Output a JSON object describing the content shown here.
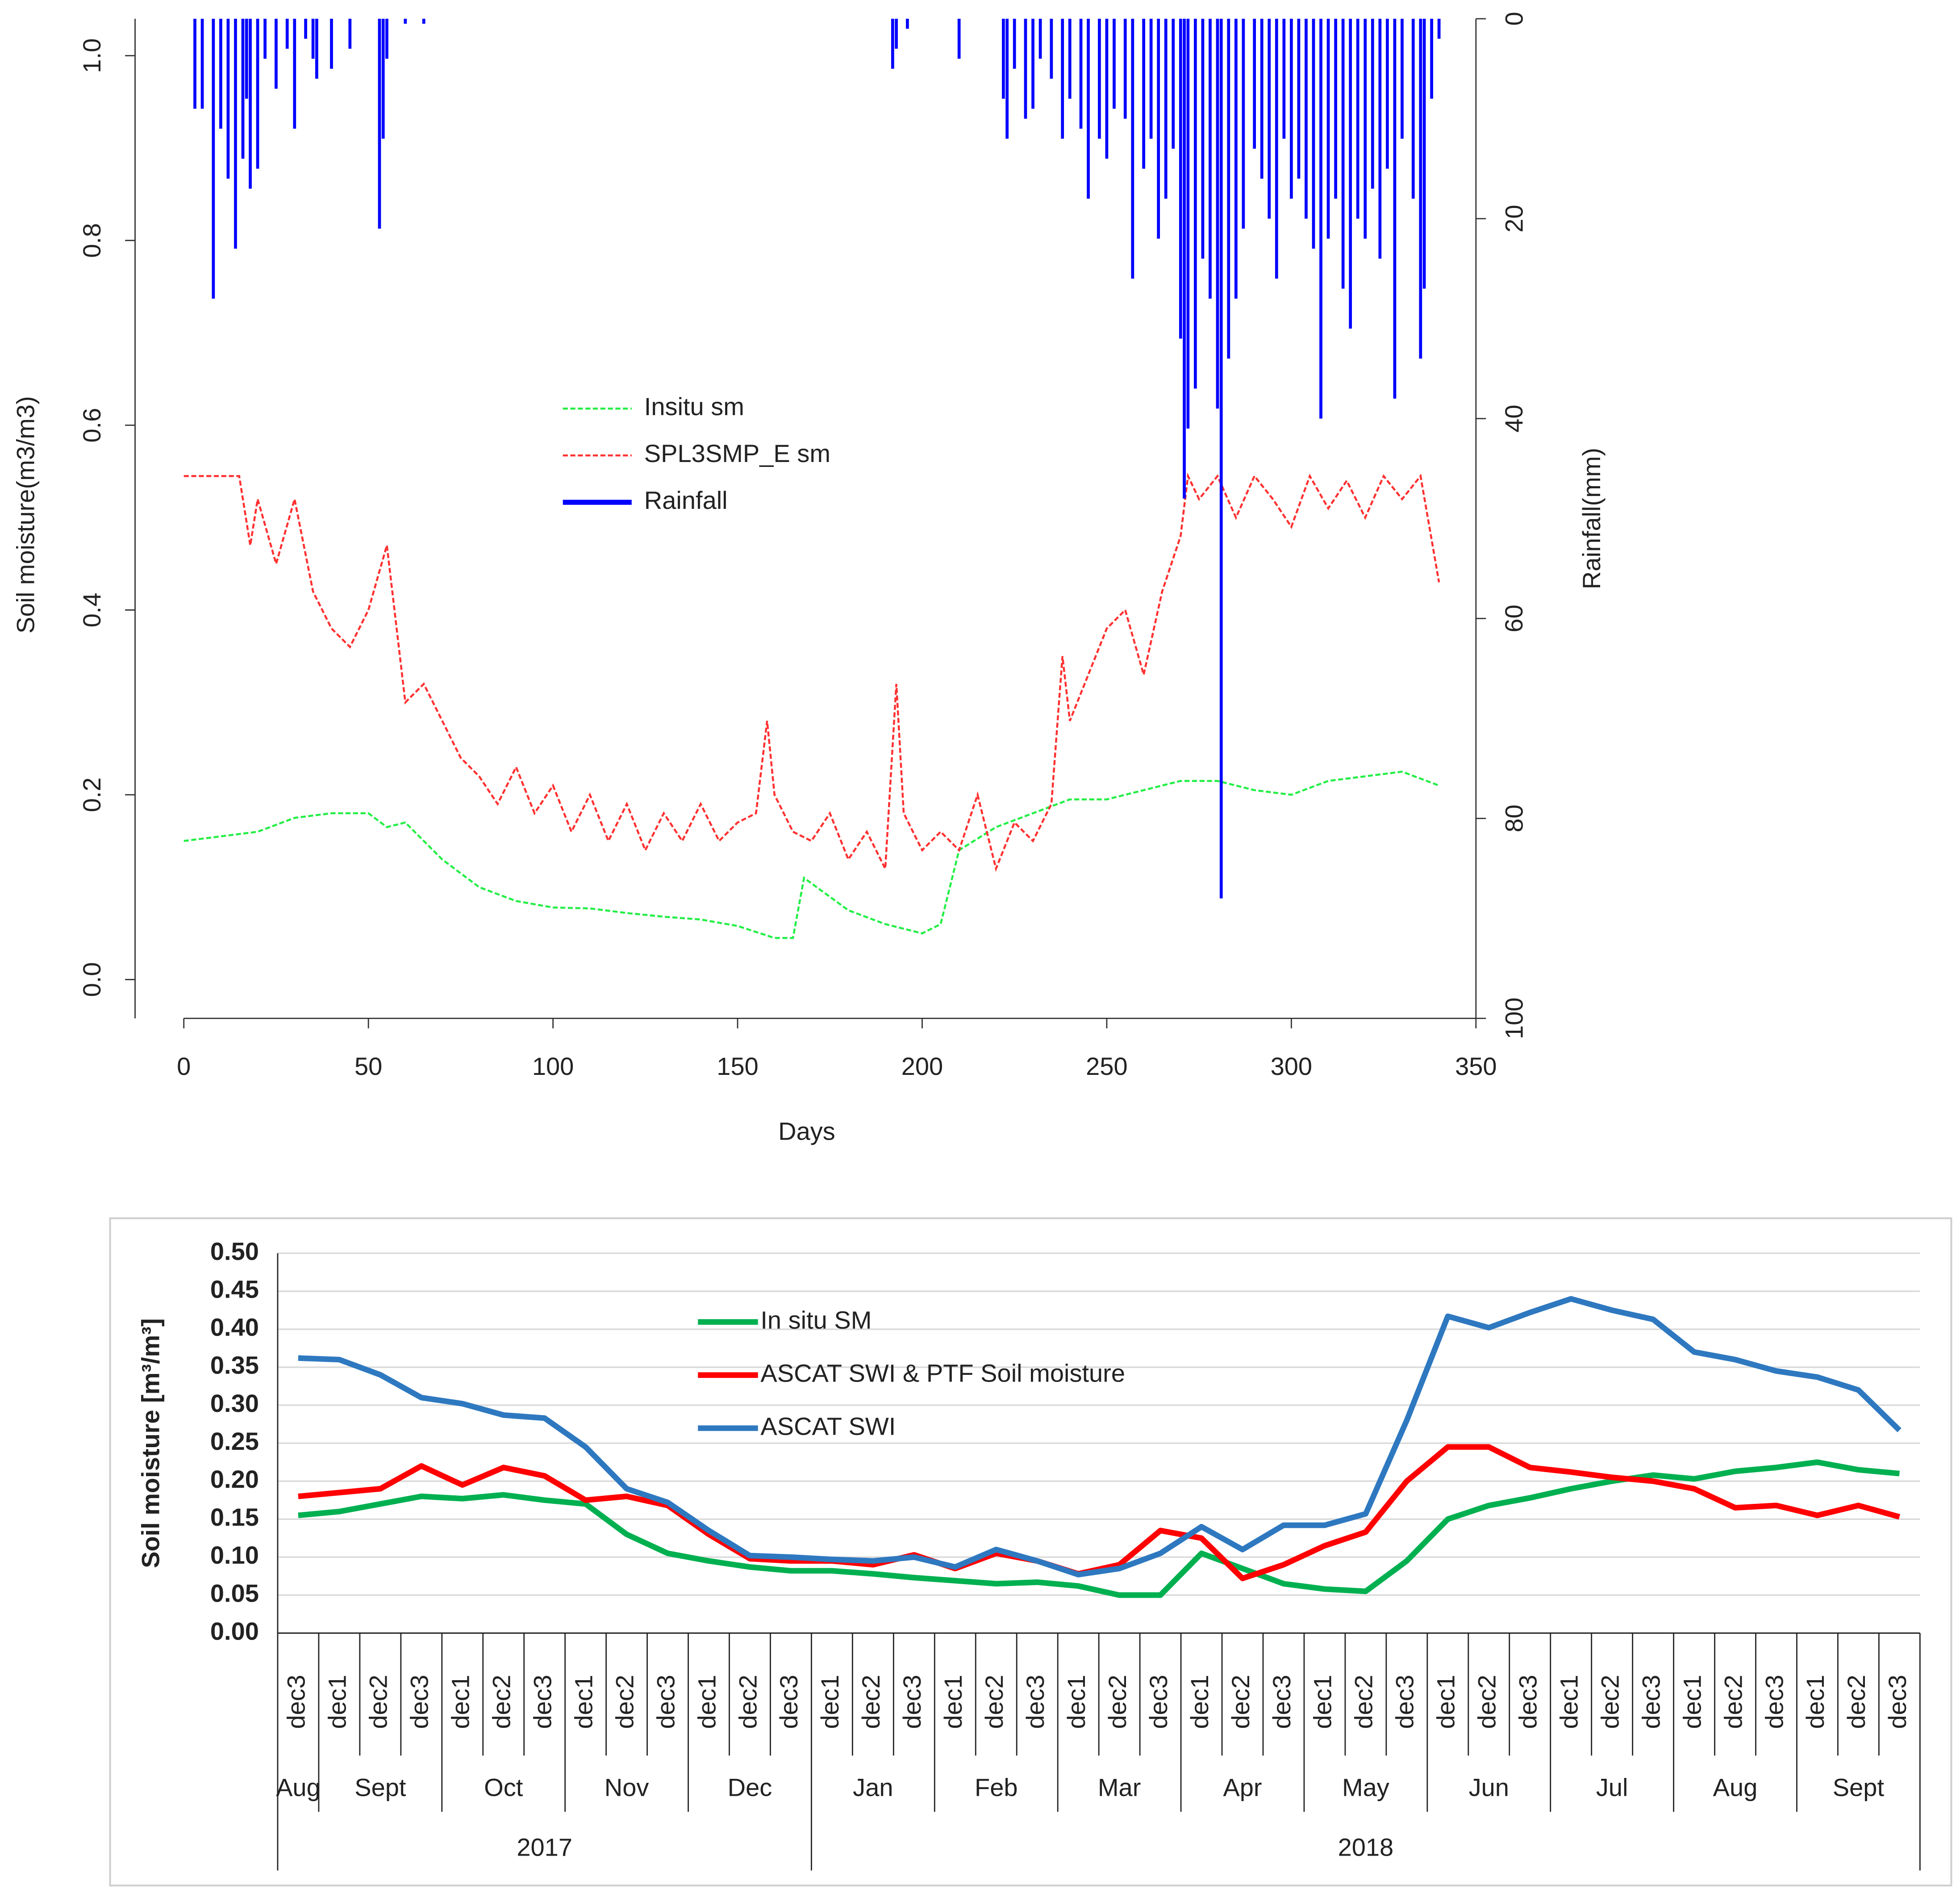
{
  "chart_data": [
    {
      "type": "line",
      "xlabel": "Days",
      "ylabel": "Soil moisture(m3/m3)",
      "y2label": "Rainfall(mm)",
      "xlim": [
        -13.2,
        350
      ],
      "xticks": [
        0,
        50,
        100,
        150,
        200,
        250,
        300,
        350
      ],
      "ylim": [
        -0.042,
        1.04
      ],
      "yticks": [
        {
          "value": 0,
          "label": "0.0"
        },
        0.2,
        0.4,
        0.6,
        0.8,
        {
          "value": 1,
          "label": "1.0"
        }
      ],
      "y2lim": [
        100,
        0
      ],
      "y2ticks": [
        0,
        20,
        40,
        60,
        80,
        100
      ],
      "legend": "center",
      "series": [
        {
          "name": "Insitu sm",
          "color": "#22ee44",
          "line_style": "dashed",
          "x": [
            0,
            10,
            20,
            30,
            40,
            50,
            55,
            60,
            70,
            80,
            90,
            100,
            110,
            120,
            130,
            140,
            150,
            160,
            165,
            168,
            180,
            190,
            200,
            205,
            210,
            220,
            230,
            240,
            250,
            260,
            270,
            280,
            290,
            300,
            310,
            320,
            330,
            340
          ],
          "values": [
            0.15,
            0.155,
            0.16,
            0.175,
            0.18,
            0.18,
            0.165,
            0.17,
            0.13,
            0.1,
            0.085,
            0.078,
            0.077,
            0.072,
            0.068,
            0.065,
            0.058,
            0.045,
            0.045,
            0.11,
            0.075,
            0.06,
            0.05,
            0.06,
            0.14,
            0.165,
            0.18,
            0.195,
            0.195,
            0.205,
            0.215,
            0.215,
            0.205,
            0.2,
            0.215,
            0.22,
            0.225,
            0.21
          ]
        },
        {
          "name": "SPL3SMP_E sm",
          "color": "#ff3030",
          "line_style": "dashed",
          "x": [
            0,
            5,
            10,
            15,
            18,
            20,
            25,
            30,
            35,
            40,
            45,
            50,
            55,
            60,
            65,
            70,
            75,
            80,
            85,
            90,
            95,
            100,
            105,
            110,
            115,
            120,
            125,
            130,
            135,
            140,
            145,
            150,
            155,
            158,
            160,
            165,
            170,
            175,
            180,
            185,
            190,
            193,
            195,
            200,
            205,
            210,
            215,
            220,
            225,
            230,
            235,
            238,
            240,
            245,
            250,
            255,
            260,
            265,
            270,
            272,
            275,
            280,
            285,
            290,
            295,
            300,
            305,
            310,
            315,
            320,
            325,
            330,
            335,
            340
          ],
          "values": [
            0.545,
            0.545,
            0.545,
            0.545,
            0.47,
            0.52,
            0.45,
            0.52,
            0.42,
            0.38,
            0.36,
            0.4,
            0.47,
            0.3,
            0.32,
            0.28,
            0.24,
            0.22,
            0.19,
            0.23,
            0.18,
            0.21,
            0.16,
            0.2,
            0.15,
            0.19,
            0.14,
            0.18,
            0.15,
            0.19,
            0.15,
            0.17,
            0.18,
            0.28,
            0.2,
            0.16,
            0.15,
            0.18,
            0.13,
            0.16,
            0.12,
            0.32,
            0.18,
            0.14,
            0.16,
            0.14,
            0.2,
            0.12,
            0.17,
            0.15,
            0.19,
            0.35,
            0.28,
            0.33,
            0.38,
            0.4,
            0.33,
            0.42,
            0.48,
            0.545,
            0.52,
            0.545,
            0.5,
            0.545,
            0.52,
            0.49,
            0.545,
            0.51,
            0.54,
            0.5,
            0.545,
            0.52,
            0.545,
            0.43
          ]
        },
        {
          "name": "Rainfall",
          "color": "#0000ff",
          "type": "bar",
          "axis": "y2",
          "x": [
            3,
            5,
            8,
            10,
            12,
            14,
            16,
            17,
            18,
            20,
            22,
            25,
            28,
            30,
            33,
            35,
            36,
            40,
            45,
            53,
            54,
            55,
            60,
            65,
            192,
            193,
            196,
            210,
            222,
            223,
            225,
            228,
            230,
            232,
            235,
            238,
            240,
            243,
            245,
            248,
            250,
            252,
            255,
            257,
            260,
            262,
            264,
            266,
            268,
            270,
            271,
            272,
            274,
            276,
            278,
            280,
            281,
            283,
            285,
            287,
            290,
            292,
            294,
            296,
            298,
            300,
            302,
            304,
            306,
            308,
            310,
            312,
            314,
            316,
            318,
            320,
            322,
            324,
            326,
            328,
            330,
            333,
            335,
            336,
            338,
            340
          ],
          "values": [
            9,
            9,
            28,
            11,
            16,
            23,
            14,
            8,
            17,
            15,
            4,
            7,
            3,
            11,
            2,
            4,
            6,
            5,
            3,
            21,
            12,
            4,
            0.5,
            0.5,
            5,
            3,
            1,
            4,
            8,
            12,
            5,
            10,
            9,
            4,
            6,
            12,
            8,
            11,
            18,
            12,
            14,
            9,
            10,
            26,
            15,
            12,
            22,
            18,
            13,
            32,
            48,
            41,
            37,
            24,
            28,
            39,
            88,
            34,
            28,
            21,
            13,
            16,
            20,
            26,
            12,
            18,
            16,
            20,
            23,
            40,
            22,
            18,
            27,
            31,
            20,
            22,
            17,
            24,
            15,
            38,
            12,
            18,
            34,
            27,
            8,
            2
          ]
        }
      ]
    },
    {
      "type": "line",
      "ylabel": "Soil moisture [m³/m³]",
      "ylim": [
        0,
        0.5
      ],
      "yticks": [
        {
          "value": 0,
          "label": "0.00"
        },
        0.05,
        {
          "value": 0.1,
          "label": "0.10"
        },
        0.15,
        {
          "value": 0.2,
          "label": "0.20"
        },
        0.25,
        {
          "value": 0.3,
          "label": "0.30"
        },
        0.35,
        {
          "value": 0.4,
          "label": "0.40"
        },
        0.45,
        {
          "value": 0.5,
          "label": "0.50"
        }
      ],
      "grid": true,
      "legend": "top",
      "years": [
        {
          "label": "2017",
          "months": [
            {
              "label": "Aug",
              "dekads": [
                "dec3"
              ]
            },
            {
              "label": "Sept",
              "dekads": [
                "dec1",
                "dec2",
                "dec3"
              ]
            },
            {
              "label": "Oct",
              "dekads": [
                "dec1",
                "dec2",
                "dec3"
              ]
            },
            {
              "label": "Nov",
              "dekads": [
                "dec1",
                "dec2",
                "dec3"
              ]
            },
            {
              "label": "Dec",
              "dekads": [
                "dec1",
                "dec2",
                "dec3"
              ]
            }
          ]
        },
        {
          "label": "2018",
          "months": [
            {
              "label": "Jan",
              "dekads": [
                "dec1",
                "dec2",
                "dec3"
              ]
            },
            {
              "label": "Feb",
              "dekads": [
                "dec1",
                "dec2",
                "dec3"
              ]
            },
            {
              "label": "Mar",
              "dekads": [
                "dec1",
                "dec2",
                "dec3"
              ]
            },
            {
              "label": "Apr",
              "dekads": [
                "dec1",
                "dec2",
                "dec3"
              ]
            },
            {
              "label": "May",
              "dekads": [
                "dec1",
                "dec2",
                "dec3"
              ]
            },
            {
              "label": "Jun",
              "dekads": [
                "dec1",
                "dec2",
                "dec3"
              ]
            },
            {
              "label": "Jul",
              "dekads": [
                "dec1",
                "dec2",
                "dec3"
              ]
            },
            {
              "label": "Aug",
              "dekads": [
                "dec1",
                "dec2",
                "dec3"
              ]
            },
            {
              "label": "Sept",
              "dekads": [
                "dec1",
                "dec2",
                "dec3"
              ]
            }
          ]
        }
      ],
      "series": [
        {
          "name": "In situ SM",
          "color": "#00b050",
          "values": [
            0.155,
            0.16,
            0.17,
            0.18,
            0.177,
            0.182,
            0.175,
            0.17,
            0.13,
            0.105,
            0.095,
            0.087,
            0.082,
            0.082,
            0.078,
            0.073,
            0.069,
            0.065,
            0.067,
            0.062,
            0.05,
            0.05,
            0.105,
            0.085,
            0.065,
            0.058,
            0.055,
            0.095,
            0.15,
            0.168,
            0.178,
            0.19,
            0.2,
            0.208,
            0.203,
            0.213,
            0.218,
            0.225,
            0.215,
            0.21
          ]
        },
        {
          "name": "ASCAT SWI & PTF Soil moisture",
          "color": "#ff0000",
          "values": [
            0.18,
            0.185,
            0.19,
            0.22,
            0.195,
            0.218,
            0.207,
            0.175,
            0.18,
            0.168,
            0.13,
            0.098,
            0.095,
            0.095,
            0.09,
            0.103,
            0.085,
            0.105,
            0.095,
            0.078,
            0.09,
            0.135,
            0.125,
            0.072,
            0.09,
            0.115,
            0.133,
            0.2,
            0.245,
            0.245,
            0.218,
            0.212,
            0.205,
            0.2,
            0.19,
            0.165,
            0.168,
            0.155,
            0.168,
            0.153
          ]
        },
        {
          "name": "ASCAT SWI",
          "color": "#2e78c0",
          "values": [
            0.362,
            0.36,
            0.34,
            0.31,
            0.302,
            0.287,
            0.283,
            0.245,
            0.19,
            0.172,
            0.135,
            0.102,
            0.1,
            0.097,
            0.095,
            0.1,
            0.087,
            0.11,
            0.095,
            0.077,
            0.085,
            0.105,
            0.14,
            0.11,
            0.142,
            0.142,
            0.157,
            0.28,
            0.417,
            0.402,
            0.422,
            0.44,
            0.425,
            0.413,
            0.37,
            0.36,
            0.345,
            0.337,
            0.32,
            0.267
          ]
        }
      ]
    }
  ]
}
